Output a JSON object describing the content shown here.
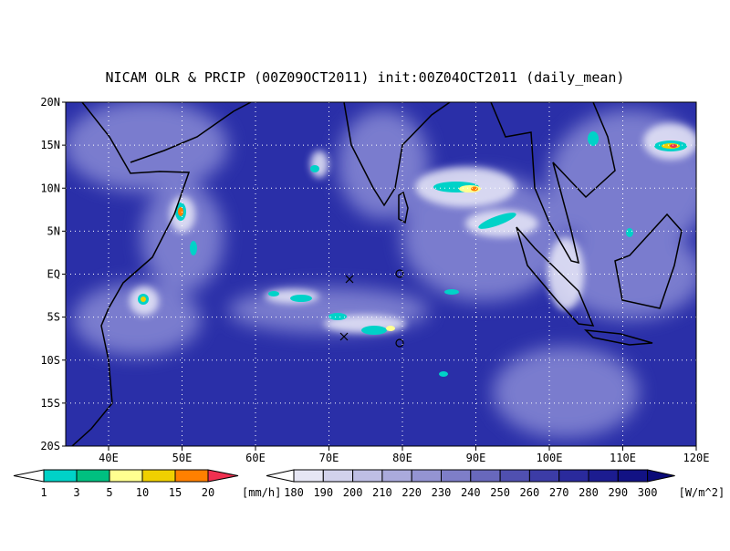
{
  "title": "NICAM OLR & PRCIP (00Z09OCT2011) init:00Z04OCT2011 (daily_mean)",
  "map": {
    "lon_labels": [
      "40E",
      "50E",
      "60E",
      "70E",
      "80E",
      "90E",
      "100E",
      "110E",
      "120E"
    ],
    "lat_labels": [
      "20N",
      "15N",
      "10N",
      "5N",
      "EQ",
      "5S",
      "10S",
      "15S",
      "20S"
    ]
  },
  "precip_colorbar": {
    "labels": [
      "1",
      "3",
      "5",
      "10",
      "15",
      "20"
    ],
    "unit": "[mm/h]",
    "colors": [
      "#ffffff",
      "#00d2c8",
      "#00c080",
      "#ffff90",
      "#f0d000",
      "#ff8000",
      "#f03050"
    ]
  },
  "olr_colorbar": {
    "labels": [
      "180",
      "190",
      "200",
      "210",
      "220",
      "230",
      "240",
      "250",
      "260",
      "270",
      "280",
      "290",
      "300"
    ],
    "unit": "[W/m^2]",
    "colors": [
      "#ffffff",
      "#e6e6f4",
      "#d2d2ec",
      "#bebee4",
      "#aaaadc",
      "#9494d2",
      "#7e7ec8",
      "#6868bc",
      "#5050b0",
      "#3c3ca6",
      "#2a2a9c",
      "#1c1c90",
      "#121284",
      "#0a0a78"
    ]
  }
}
